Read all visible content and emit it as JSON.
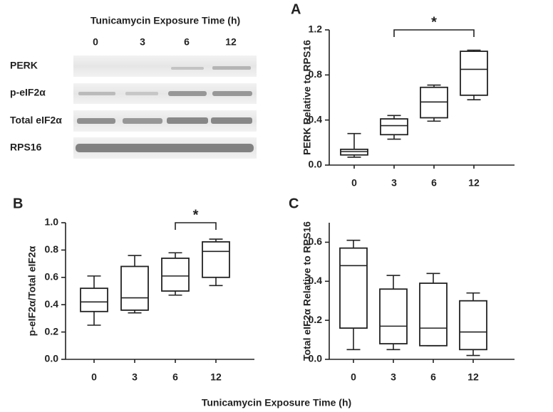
{
  "figure": {
    "xlabel": "Tunicamycin Exposure Time (h)"
  },
  "blot": {
    "title": "Tunicamycin Exposure Time (h)",
    "lanes": [
      "0",
      "3",
      "6",
      "12"
    ],
    "rows": [
      "PERK",
      "p-eIF2α",
      "Total eIF2α",
      "RPS16"
    ]
  },
  "chart_data": [
    {
      "type": "box",
      "label": "A",
      "ylabel": "PERK Relative to RPS16",
      "categories": [
        "0",
        "3",
        "6",
        "12"
      ],
      "min": [
        0.07,
        0.23,
        0.39,
        0.58
      ],
      "q1": [
        0.09,
        0.27,
        0.42,
        0.62
      ],
      "median": [
        0.12,
        0.35,
        0.56,
        0.85
      ],
      "q3": [
        0.14,
        0.41,
        0.69,
        1.01
      ],
      "max": [
        0.28,
        0.44,
        0.71,
        1.02
      ],
      "ylim": [
        0,
        1.2
      ],
      "yticks": [
        {
          "value": 0,
          "label": "0.0"
        },
        0.4,
        0.8,
        1.2
      ],
      "annotations": [
        {
          "text": "*",
          "span": [
            "3",
            "12"
          ]
        }
      ]
    },
    {
      "type": "box",
      "label": "B",
      "ylabel": "p-eIF2α/Total eIF2α",
      "categories": [
        "0",
        "3",
        "6",
        "12"
      ],
      "min": [
        0.25,
        0.34,
        0.47,
        0.54
      ],
      "q1": [
        0.35,
        0.36,
        0.5,
        0.6
      ],
      "median": [
        0.42,
        0.45,
        0.61,
        0.79
      ],
      "q3": [
        0.52,
        0.68,
        0.74,
        0.86
      ],
      "max": [
        0.61,
        0.76,
        0.78,
        0.88
      ],
      "ylim": [
        0,
        1.0
      ],
      "yticks": [
        {
          "value": 0,
          "label": "0.0"
        },
        0.2,
        0.4,
        0.6,
        0.8,
        {
          "value": 1.0,
          "label": "1.0"
        }
      ],
      "annotations": [
        {
          "text": "*",
          "span": [
            "6",
            "12"
          ]
        }
      ]
    },
    {
      "type": "box",
      "label": "C",
      "ylabel": "Total eIF2α Relative to RPS16",
      "categories": [
        "0",
        "3",
        "6",
        "12"
      ],
      "min": [
        0.05,
        0.05,
        0.07,
        0.02
      ],
      "q1": [
        0.16,
        0.08,
        0.07,
        0.05
      ],
      "median": [
        0.48,
        0.17,
        0.16,
        0.14
      ],
      "q3": [
        0.57,
        0.36,
        0.39,
        0.3
      ],
      "max": [
        0.61,
        0.43,
        0.44,
        0.34
      ],
      "ylim": [
        0,
        0.7
      ],
      "yticks": [
        {
          "value": 0,
          "label": "0.0"
        },
        0.2,
        0.4,
        0.6
      ]
    }
  ]
}
